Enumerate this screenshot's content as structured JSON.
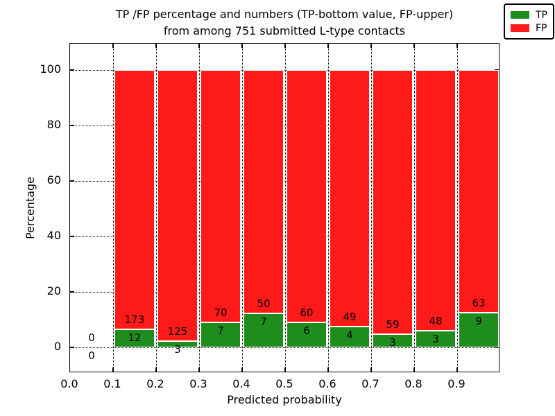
{
  "figure": {
    "title_line1": "TP /FP percentage and numbers (TP-bottom value, FP-upper)",
    "title_line2": "from among 751 submitted L-type contacts"
  },
  "chart_data": {
    "type": "bar",
    "stacked": true,
    "title": "TP /FP percentage and numbers (TP-bottom value, FP-upper) from among 751 submitted L-type contacts",
    "xlabel": "Predicted probability",
    "ylabel": "Percentage",
    "total_submitted": 751,
    "bins_start": [
      0.0,
      0.1,
      0.2,
      0.3,
      0.4,
      0.5,
      0.6,
      0.7,
      0.8,
      0.9
    ],
    "bin_width": 0.1,
    "series": [
      {
        "name": "TP",
        "color": "#1e8d1e",
        "counts": [
          0,
          12,
          3,
          7,
          7,
          6,
          4,
          3,
          3,
          9
        ]
      },
      {
        "name": "FP",
        "color": "#ff1a1a",
        "counts": [
          0,
          173,
          125,
          70,
          50,
          60,
          49,
          59,
          48,
          63
        ]
      }
    ],
    "bar_heights_note": "each bin's bars are percent of bin total: TP% bottom (green), FP% above (red), stacking to 100; bin 0.0-0.1 empty with 0/0 labels",
    "xticks": [
      "0.0",
      "0.1",
      "0.2",
      "0.3",
      "0.4",
      "0.5",
      "0.6",
      "0.7",
      "0.8",
      "0.9"
    ],
    "yticks": [
      0,
      20,
      40,
      60,
      80,
      100
    ],
    "xlim": [
      0.0,
      1.0
    ],
    "ylim": [
      -9.25,
      109.5
    ],
    "grid": "dotted black, at all x and y ticks",
    "legend": {
      "position": "upper right",
      "entries": [
        "TP",
        "FP"
      ]
    }
  }
}
